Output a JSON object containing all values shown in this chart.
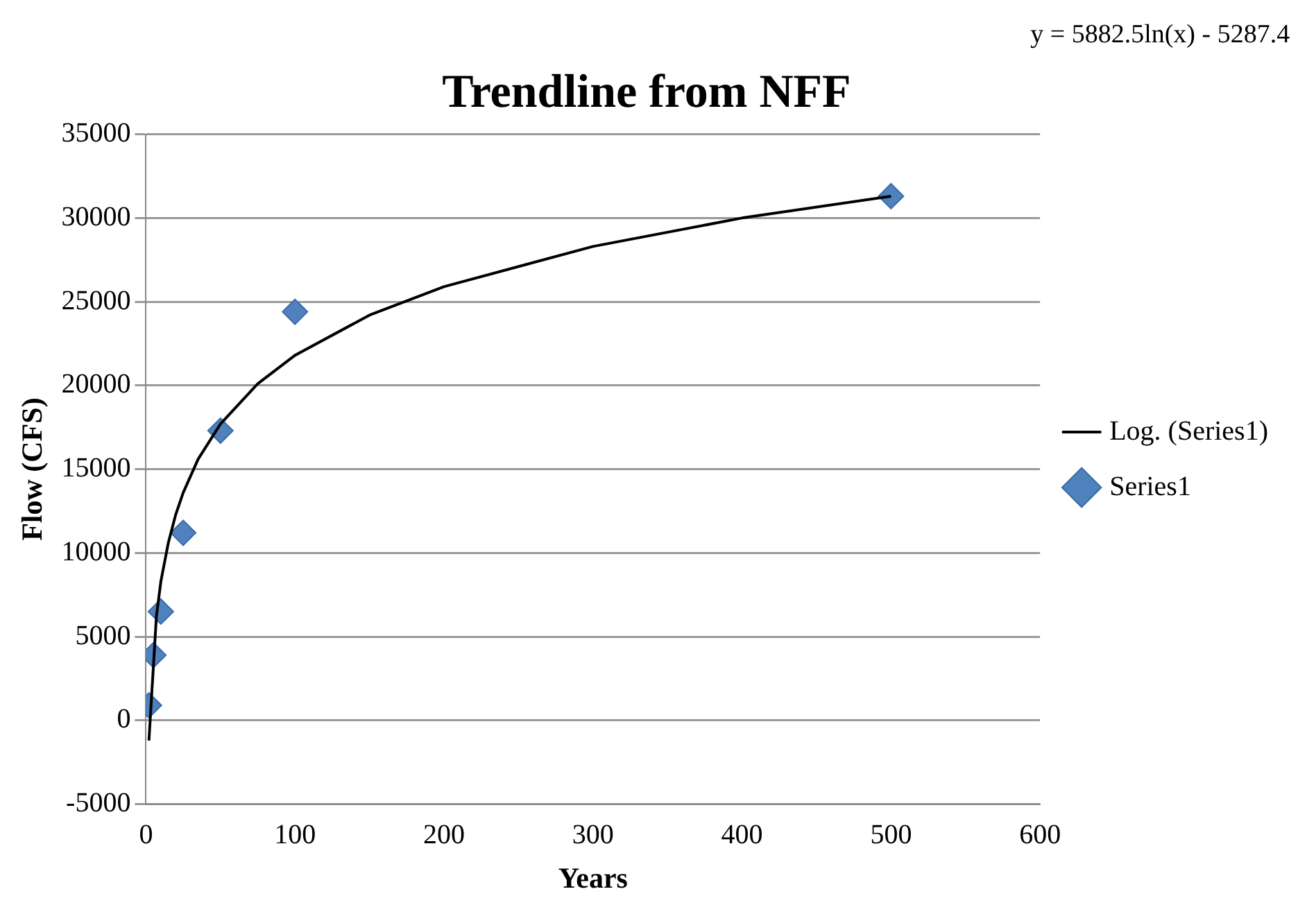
{
  "chart_data": {
    "type": "scatter",
    "title": "Trendline from NFF",
    "xlabel": "Years",
    "ylabel": "Flow (CFS)",
    "annotations": [
      "y = 5882.5ln(x) - 5287.4"
    ],
    "x": [
      2,
      5,
      10,
      25,
      50,
      100,
      500
    ],
    "series": [
      {
        "name": "Series1",
        "type": "scatter",
        "color": "#4f81bd",
        "marker": "diamond",
        "values": [
          900,
          3900,
          6500,
          11200,
          17300,
          24400,
          31300
        ]
      },
      {
        "name": "Log. (Series1)",
        "type": "line",
        "color": "#000000",
        "marker": "none",
        "line_style": "solid",
        "x": [
          2,
          7,
          10,
          15,
          20,
          25,
          35,
          50,
          75,
          100,
          150,
          200,
          300,
          400,
          500
        ],
        "values": [
          -1200,
          6200,
          8300,
          10600,
          12300,
          13600,
          15600,
          17700,
          20100,
          21800,
          24200,
          25900,
          28300,
          30000,
          31300
        ]
      }
    ],
    "xlim": [
      0,
      600
    ],
    "xticks": [
      0,
      100,
      200,
      300,
      400,
      500,
      600
    ],
    "ylim": [
      -5000,
      35000
    ],
    "yticks": [
      -5000,
      0,
      5000,
      10000,
      15000,
      20000,
      25000,
      30000,
      35000
    ],
    "grid": "y",
    "legend": "right"
  }
}
